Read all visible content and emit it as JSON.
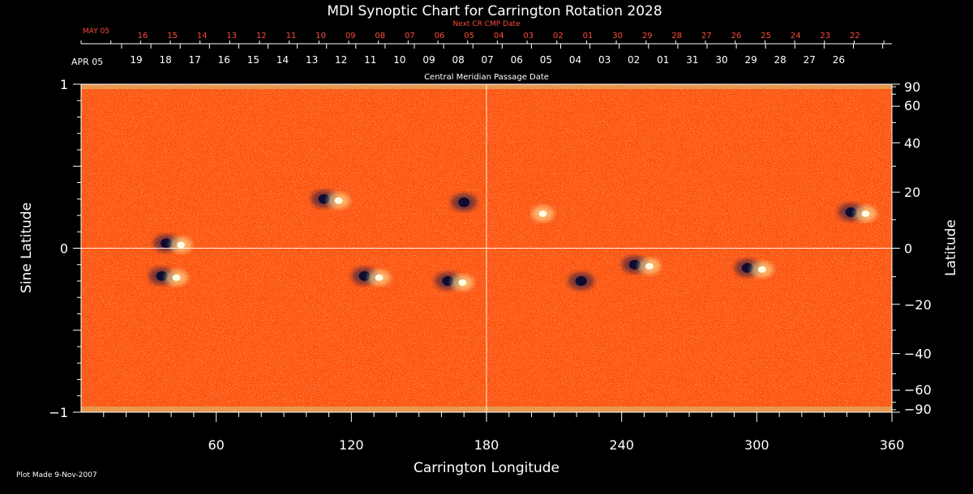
{
  "colors": {
    "background": "#000000",
    "foreground": "#ffffff",
    "accent_red": "#ff4a3d",
    "map_base": "#ff5a10",
    "map_bright": "#fff2a6",
    "map_dark": "#14124a"
  },
  "chart_data": {
    "type": "heatmap",
    "title": "MDI Synoptic Chart for Carrington Rotation 2028",
    "xlabel": "Carrington Longitude",
    "ylabel_left": "Sine Latitude",
    "ylabel_right": "Latitude",
    "footer_note": "Plot Made  9-Nov-2007",
    "xlim": [
      0,
      360
    ],
    "ylim_sine": [
      -1,
      1
    ],
    "x_ticks": [
      60,
      120,
      180,
      240,
      300,
      360
    ],
    "y_ticks_left": [
      {
        "value": 1,
        "label": "1"
      },
      {
        "value": 0,
        "label": "0"
      },
      {
        "value": -1,
        "label": "−1"
      }
    ],
    "y_ticks_right": [
      {
        "lat": 90,
        "label": "90"
      },
      {
        "lat": 60,
        "label": "60"
      },
      {
        "lat": 40,
        "label": "40"
      },
      {
        "lat": 20,
        "label": "20"
      },
      {
        "lat": 0,
        "label": "0"
      },
      {
        "lat": -20,
        "label": "−20"
      },
      {
        "lat": -40,
        "label": "−40"
      },
      {
        "lat": -60,
        "label": "−60"
      },
      {
        "lat": -90,
        "label": "−90"
      }
    ],
    "gridlines": {
      "vertical_at_lon": 180,
      "horizontal_at_sinlat": 0
    },
    "next_cr_axis": {
      "label": "Next CR CMP Date",
      "first_label": "MAY 05",
      "labels": [
        "16",
        "15",
        "14",
        "13",
        "12",
        "11",
        "10",
        "09",
        "08",
        "07",
        "06",
        "05",
        "04",
        "03",
        "02",
        "01",
        "30",
        "29",
        "28",
        "27",
        "26",
        "25",
        "24",
        "23",
        "22"
      ]
    },
    "cmp_axis": {
      "label": "Central Meridian Passage Date",
      "first_label": "APR 05",
      "labels": [
        "19",
        "18",
        "17",
        "16",
        "15",
        "14",
        "13",
        "12",
        "11",
        "10",
        "09",
        "08",
        "07",
        "06",
        "05",
        "04",
        "03",
        "02",
        "01",
        "31",
        "30",
        "29",
        "28",
        "27",
        "26"
      ]
    },
    "active_regions": [
      {
        "lon": 40,
        "sinlat": 0.03,
        "polarity": "bipolar"
      },
      {
        "lon": 38,
        "sinlat": -0.17,
        "polarity": "bipolar"
      },
      {
        "lon": 110,
        "sinlat": 0.3,
        "polarity": "bipolar"
      },
      {
        "lon": 128,
        "sinlat": -0.17,
        "polarity": "bipolar"
      },
      {
        "lon": 165,
        "sinlat": -0.2,
        "polarity": "bipolar"
      },
      {
        "lon": 170,
        "sinlat": 0.28,
        "polarity": "negative"
      },
      {
        "lon": 205,
        "sinlat": 0.22,
        "polarity": "positive"
      },
      {
        "lon": 222,
        "sinlat": -0.2,
        "polarity": "negative"
      },
      {
        "lon": 248,
        "sinlat": -0.1,
        "polarity": "bipolar"
      },
      {
        "lon": 298,
        "sinlat": -0.12,
        "polarity": "bipolar"
      },
      {
        "lon": 344,
        "sinlat": 0.22,
        "polarity": "bipolar"
      }
    ]
  }
}
